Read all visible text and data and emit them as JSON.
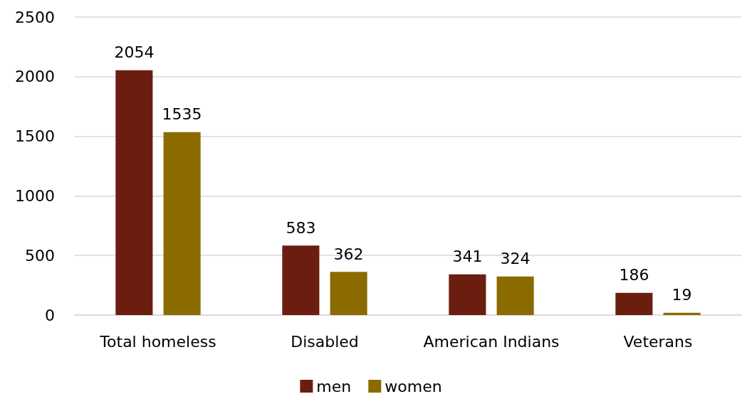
{
  "chart_data": {
    "type": "bar",
    "categories": [
      "Total homeless",
      "Disabled",
      "American Indians",
      "Veterans"
    ],
    "series": [
      {
        "name": "men",
        "color": "#6b1e0f",
        "values": [
          2054,
          583,
          341,
          186
        ]
      },
      {
        "name": "women",
        "color": "#8b6b00",
        "values": [
          1535,
          362,
          324,
          19
        ]
      }
    ],
    "ylim": [
      0,
      2500
    ],
    "yticks": [
      0,
      500,
      1000,
      1500,
      2000,
      2500
    ],
    "grid": "y",
    "legend": "bottom",
    "data_labels": true
  }
}
